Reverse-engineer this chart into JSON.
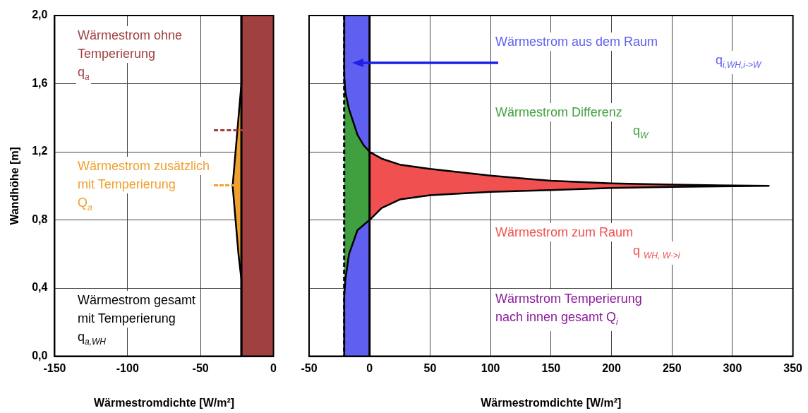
{
  "chart_data": [
    {
      "type": "line",
      "xlabel": "Wärmestromdichte [W/m²]",
      "ylabel": "Wandhöhe [m]",
      "xlim": [
        -150,
        0
      ],
      "xticks": [
        -150,
        -100,
        -50,
        0
      ],
      "ylim": [
        0,
        2
      ],
      "yticks": [
        {
          "value": 0,
          "label": "0,0"
        },
        {
          "value": 0.4,
          "label": "0,4"
        },
        {
          "value": 0.8,
          "label": "0,8"
        },
        {
          "value": 1.2,
          "label": "1,2"
        },
        {
          "value": 1.6,
          "label": "1,6"
        },
        {
          "value": 2,
          "label": "2,0"
        }
      ],
      "grid": true,
      "marker": "none",
      "ref_lines": [
        {
          "axis": "x",
          "value": -22,
          "color": "#000000"
        }
      ],
      "series": [
        {
          "name": "Wärmestrom ohne\nTemperierung\nq$_{a}$",
          "type": "area",
          "color": "#a04040",
          "x": [
            -22,
            0,
            0,
            -22
          ],
          "values": [
            0,
            0,
            2,
            2
          ]
        },
        {
          "name": "Wärmestrom zusätzlich\nmit Temperierung\nQ$_{a}$",
          "type": "area",
          "color": "#f0a030",
          "x": [
            -22,
            -24,
            -26,
            -28,
            -26,
            -24,
            -22
          ],
          "values": [
            1.6,
            1.4,
            1.2,
            1.0,
            0.8,
            0.6,
            0.45
          ]
        },
        {
          "name": "Wärmestrom gesamt\nmit Temperierung\nq$_{a,WH}$",
          "color": "#000000",
          "x": [
            -22,
            -22,
            -24,
            -26,
            -28,
            -26,
            -24,
            -22,
            -22
          ],
          "values": [
            2,
            1.6,
            1.4,
            1.2,
            1.0,
            0.8,
            0.6,
            0.45,
            0
          ]
        }
      ]
    },
    {
      "type": "line",
      "xlabel": "Wärmestromdichte [W/m²]",
      "xlim": [
        -50,
        350
      ],
      "xticks": [
        -50,
        0,
        50,
        100,
        150,
        200,
        250,
        300,
        350
      ],
      "ylim": [
        0,
        2
      ],
      "yticks": [
        0,
        0.4,
        0.8,
        1.2,
        1.6,
        2
      ],
      "tick_labels": "x",
      "grid": true,
      "legend": false,
      "marker": "none",
      "ref_lines": [
        {
          "axis": "x",
          "value": -21,
          "color": "#000000",
          "line_style": "dashed"
        },
        {
          "axis": "x",
          "value": 0,
          "color": "#000000"
        }
      ],
      "annotations": [
        "Wärmstrom Temperierung\nnach innen gesamt   Q$_{i}$"
      ],
      "series": [
        {
          "name": "Wärmestrom aus dem Raum\nq$_{i,WH,i->W}$",
          "type": "area",
          "color": "#6060f0",
          "x": [
            -21,
            0,
            0,
            -21
          ],
          "values": [
            0,
            0,
            2,
            2
          ]
        },
        {
          "name": "Wärmestrom Differenz\nq$_{W}$",
          "type": "area",
          "color": "#40a040",
          "x": [
            -21,
            -20,
            -17,
            -10,
            -5,
            0,
            0,
            -10,
            -17,
            -20,
            -21
          ],
          "values": [
            1.65,
            1.55,
            1.45,
            1.3,
            1.24,
            1.2,
            0.8,
            0.74,
            0.6,
            0.45,
            0.35
          ]
        },
        {
          "name": "Wärmestrom zum Raum\nq $_{WH, W->i}$",
          "type": "area",
          "color": "#f05050",
          "x": [
            0,
            10,
            25,
            50,
            100,
            150,
            200,
            250,
            330,
            250,
            200,
            150,
            100,
            50,
            25,
            10,
            0
          ],
          "values": [
            1.2,
            1.16,
            1.125,
            1.1,
            1.06,
            1.03,
            1.015,
            1.007,
            1.0,
            0.994,
            0.988,
            0.975,
            0.965,
            0.945,
            0.92,
            0.87,
            0.8
          ]
        },
        {
          "color": "#000000",
          "x": [
            -21,
            -21,
            -20,
            -17,
            -10,
            -5,
            0,
            10,
            25,
            50,
            100,
            150,
            200,
            250,
            330,
            250,
            200,
            150,
            100,
            50,
            25,
            10,
            0,
            -10,
            -17,
            -20,
            -21,
            -21
          ],
          "values": [
            2,
            1.65,
            1.55,
            1.45,
            1.3,
            1.24,
            1.2,
            1.16,
            1.125,
            1.1,
            1.06,
            1.03,
            1.015,
            1.007,
            1.0,
            0.994,
            0.988,
            0.975,
            0.965,
            0.945,
            0.92,
            0.87,
            0.8,
            0.74,
            0.6,
            0.45,
            0.35,
            0
          ]
        }
      ]
    }
  ]
}
